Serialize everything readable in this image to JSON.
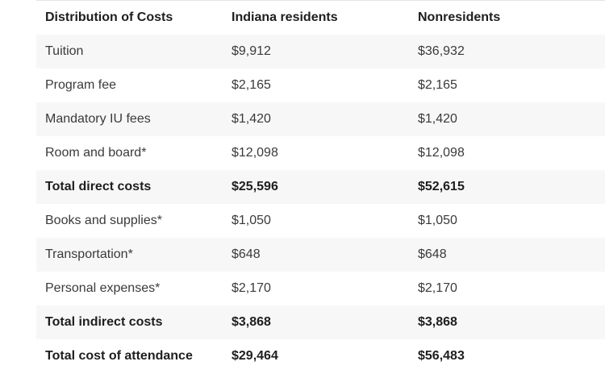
{
  "table": {
    "headers": [
      "Distribution of Costs",
      "Indiana residents",
      "Nonresidents"
    ],
    "rows": [
      {
        "label": "Tuition",
        "resident": "$9,912",
        "nonresident": "$36,932",
        "total": false
      },
      {
        "label": "Program fee",
        "resident": "$2,165",
        "nonresident": "$2,165",
        "total": false
      },
      {
        "label": "Mandatory IU fees",
        "resident": "$1,420",
        "nonresident": "$1,420",
        "total": false
      },
      {
        "label": "Room and board*",
        "resident": "$12,098",
        "nonresident": "$12,098",
        "total": false
      },
      {
        "label": "Total direct costs",
        "resident": "$25,596",
        "nonresident": "$52,615",
        "total": true
      },
      {
        "label": "Books and supplies*",
        "resident": "$1,050",
        "nonresident": "$1,050",
        "total": false
      },
      {
        "label": "Transportation*",
        "resident": "$648",
        "nonresident": "$648",
        "total": false
      },
      {
        "label": "Personal expenses*",
        "resident": "$2,170",
        "nonresident": "$2,170",
        "total": false
      },
      {
        "label": "Total indirect costs",
        "resident": "$3,868",
        "nonresident": "$3,868",
        "total": true
      },
      {
        "label": "Total cost of attendance",
        "resident": "$29,464",
        "nonresident": "$56,483",
        "total": true
      }
    ]
  },
  "colors": {
    "stripe": "#f7f7f7",
    "text": "#1e1e1e",
    "muted_text": "#3a3a3a"
  }
}
